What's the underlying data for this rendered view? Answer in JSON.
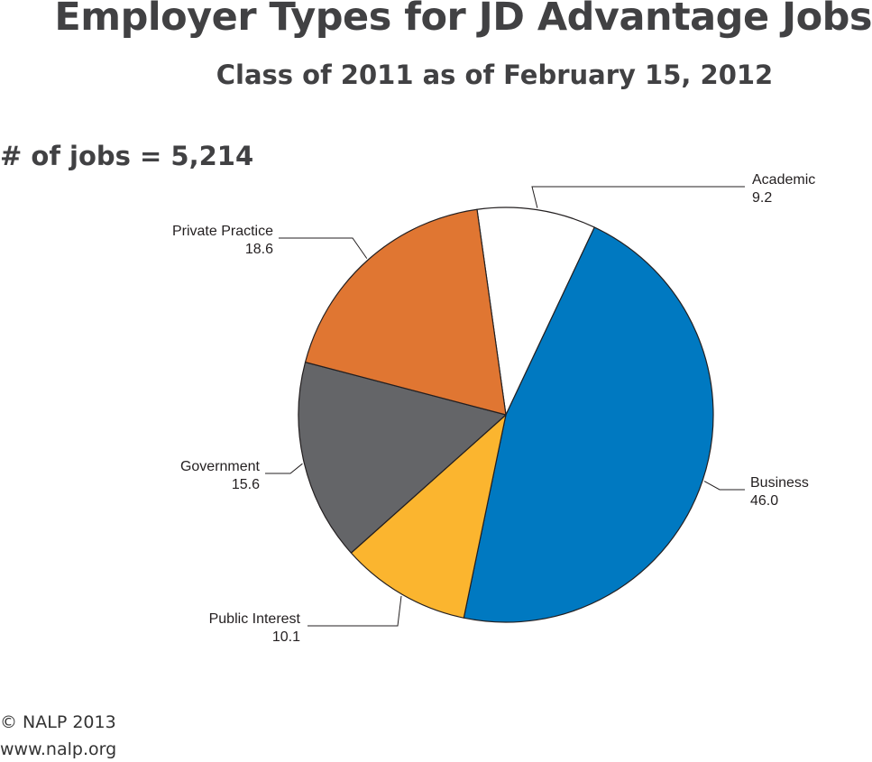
{
  "title": "Employer Types for JD Advantage Jobs",
  "subtitle": "Class of 2011 as of February 15, 2012",
  "note": "# of jobs = 5,214",
  "footer": {
    "copyright": "© NALP 2013",
    "url": "www.nalp.org"
  },
  "chart_data": {
    "type": "pie",
    "unit": "percent",
    "categories": [
      "Academic",
      "Business",
      "Public Interest",
      "Government",
      "Private Practice"
    ],
    "values": [
      9.2,
      46.0,
      10.1,
      15.6,
      18.6
    ],
    "value_labels": [
      "9.2",
      "46.0",
      "10.1",
      "15.6",
      "18.6"
    ],
    "colors": [
      "#ffffff",
      "#0079c1",
      "#fbb52f",
      "#646568",
      "#e07632"
    ],
    "start_angle_deg": -8,
    "direction": "clockwise",
    "labels": "outside with leader lines",
    "legend": "none"
  }
}
